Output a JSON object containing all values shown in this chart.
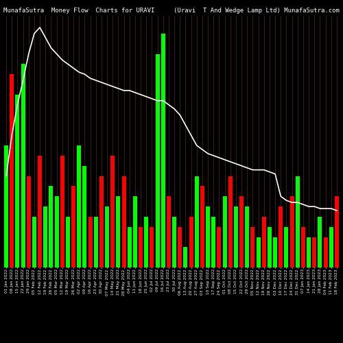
{
  "title": "MunafaSutra  Money Flow  Charts for URAVI",
  "title_right": "(Uravi  T And Wedge Lamp Ltd) MunafaSutra.com",
  "background_color": "#000000",
  "bar_color_pos": "#00FF00",
  "bar_color_neg": "#FF0000",
  "line_color": "#FFFFFF",
  "grid_color": "#5a2a00",
  "n_bars": 60,
  "bar_values": [
    6.0,
    9.5,
    8.5,
    10.0,
    4.5,
    2.5,
    5.5,
    3.0,
    4.0,
    3.5,
    5.5,
    2.5,
    4.0,
    6.0,
    5.0,
    2.5,
    2.5,
    4.5,
    3.0,
    5.5,
    3.5,
    4.5,
    2.0,
    3.5,
    2.0,
    2.5,
    2.0,
    10.5,
    11.5,
    3.5,
    2.5,
    2.0,
    1.0,
    2.5,
    4.5,
    4.0,
    3.0,
    2.5,
    2.0,
    3.5,
    4.5,
    3.0,
    3.5,
    3.0,
    2.0,
    1.5,
    2.5,
    2.0,
    1.5,
    3.0,
    2.0,
    3.5,
    4.5,
    2.0,
    1.5,
    1.5,
    2.5,
    1.5,
    2.0,
    3.5
  ],
  "bar_colors": [
    "G",
    "R",
    "G",
    "G",
    "R",
    "G",
    "R",
    "G",
    "G",
    "G",
    "R",
    "G",
    "R",
    "G",
    "G",
    "R",
    "G",
    "R",
    "G",
    "R",
    "G",
    "R",
    "G",
    "G",
    "R",
    "G",
    "R",
    "G",
    "G",
    "R",
    "G",
    "R",
    "G",
    "R",
    "G",
    "R",
    "G",
    "G",
    "R",
    "G",
    "R",
    "G",
    "R",
    "G",
    "R",
    "G",
    "R",
    "G",
    "G",
    "R",
    "G",
    "R",
    "G",
    "R",
    "G",
    "R",
    "G",
    "R",
    "G",
    "R"
  ],
  "line_values": [
    4.5,
    6.5,
    8.0,
    9.2,
    10.5,
    11.5,
    11.8,
    11.3,
    10.8,
    10.5,
    10.2,
    10.0,
    9.8,
    9.6,
    9.5,
    9.3,
    9.2,
    9.1,
    9.0,
    8.9,
    8.8,
    8.7,
    8.7,
    8.6,
    8.5,
    8.4,
    8.3,
    8.2,
    8.2,
    8.0,
    7.8,
    7.5,
    7.0,
    6.5,
    6.0,
    5.8,
    5.6,
    5.5,
    5.4,
    5.3,
    5.2,
    5.1,
    5.0,
    4.9,
    4.8,
    4.8,
    4.8,
    4.7,
    4.6,
    3.5,
    3.3,
    3.2,
    3.2,
    3.1,
    3.0,
    3.0,
    2.9,
    2.9,
    2.9,
    2.8
  ],
  "xlabel_fontsize": 4.2,
  "title_fontsize": 6.5,
  "xlabels": [
    "01 Jan 2022",
    "08 Jan 2022",
    "15 Jan 2022",
    "22 Jan 2022",
    "29 Jan 2022",
    "05 Feb 2022",
    "12 Feb 2022",
    "19 Feb 2022",
    "26 Feb 2022",
    "05 Mar 2022",
    "12 Mar 2022",
    "19 Mar 2022",
    "26 Mar 2022",
    "02 Apr 2022",
    "09 Apr 2022",
    "16 Apr 2022",
    "23 Apr 2022",
    "30 Apr 2022",
    "07 May 2022",
    "14 May 2022",
    "21 May 2022",
    "28 May 2022",
    "04 Jun 2022",
    "11 Jun 2022",
    "18 Jun 2022",
    "25 Jun 2022",
    "02 Jul 2022",
    "09 Jul 2022",
    "16 Jul 2022",
    "23 Jul 2022",
    "30 Jul 2022",
    "06 Aug 2022",
    "13 Aug 2022",
    "20 Aug 2022",
    "27 Aug 2022",
    "03 Sep 2022",
    "10 Sep 2022",
    "17 Sep 2022",
    "24 Sep 2022",
    "01 Oct 2022",
    "08 Oct 2022",
    "15 Oct 2022",
    "22 Oct 2022",
    "29 Oct 2022",
    "05 Nov 2022",
    "12 Nov 2022",
    "19 Nov 2022",
    "26 Nov 2022",
    "03 Dec 2022",
    "10 Dec 2022",
    "17 Dec 2022",
    "24 Dec 2022",
    "31 Dec 2022",
    "07 Jan 2023",
    "14 Jan 2023",
    "21 Jan 2023",
    "28 Jan 2023",
    "04 Feb 2023",
    "11 Feb 2023",
    "18 Feb 2023"
  ]
}
